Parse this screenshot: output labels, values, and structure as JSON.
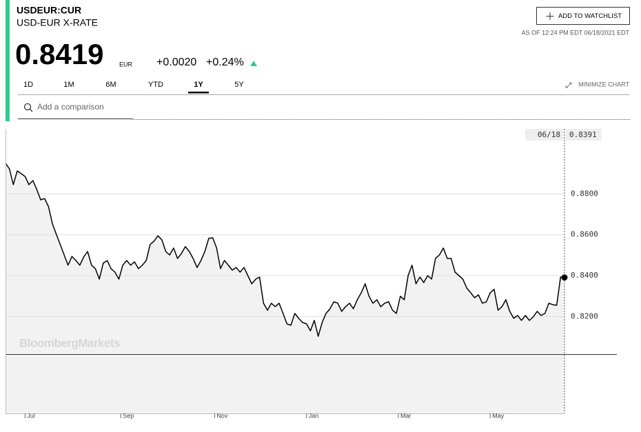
{
  "header": {
    "ticker": "USDEUR:CUR",
    "name": "USD-EUR X-RATE",
    "price": "0.8419",
    "unit": "EUR",
    "change": "+0.0020",
    "change_pct": "+0.24%",
    "watchlist_button": "ADD TO WATCHLIST",
    "timestamp": "AS OF 12:24 PM EDT 06/18/2021 EDT"
  },
  "ranges": {
    "items": [
      "1D",
      "1M",
      "6M",
      "YTD",
      "1Y",
      "5Y"
    ],
    "active": 4,
    "minimize": "MINIMIZE CHART"
  },
  "search": {
    "placeholder": "Add a comparison"
  },
  "watermark": "BloombergMarkets",
  "chart_data": {
    "type": "line",
    "color": "#000000",
    "values": [
      0.8949,
      0.8922,
      0.8845,
      0.8912,
      0.8899,
      0.8885,
      0.8845,
      0.8865,
      0.8821,
      0.8771,
      0.8777,
      0.8737,
      0.8653,
      0.8602,
      0.8552,
      0.8501,
      0.8451,
      0.8494,
      0.8474,
      0.8451,
      0.8491,
      0.8518,
      0.8451,
      0.8434,
      0.8383,
      0.8461,
      0.8474,
      0.8434,
      0.8417,
      0.8383,
      0.8451,
      0.8474,
      0.8451,
      0.8467,
      0.8434,
      0.8451,
      0.8474,
      0.8552,
      0.8569,
      0.8595,
      0.8575,
      0.8518,
      0.8501,
      0.8535,
      0.8484,
      0.8508,
      0.8542,
      0.8518,
      0.8484,
      0.844,
      0.8474,
      0.8518,
      0.8582,
      0.8585,
      0.8535,
      0.8434,
      0.8474,
      0.8451,
      0.8427,
      0.844,
      0.8417,
      0.844,
      0.84,
      0.836,
      0.8383,
      0.8393,
      0.8265,
      0.8231,
      0.8265,
      0.8248,
      0.8265,
      0.8215,
      0.8164,
      0.8157,
      0.8215,
      0.8191,
      0.8171,
      0.8164,
      0.813,
      0.8181,
      0.8103,
      0.8171,
      0.8215,
      0.8238,
      0.8272,
      0.8265,
      0.8225,
      0.8248,
      0.8265,
      0.8238,
      0.8282,
      0.8316,
      0.836,
      0.8299,
      0.8265,
      0.8282,
      0.8248,
      0.8265,
      0.8272,
      0.8231,
      0.8215,
      0.8299,
      0.8282,
      0.84,
      0.8451,
      0.836,
      0.8393,
      0.8366,
      0.84,
      0.8383,
      0.8484,
      0.8501,
      0.8535,
      0.8484,
      0.8484,
      0.8417,
      0.84,
      0.8383,
      0.8339,
      0.8316,
      0.8292,
      0.8306,
      0.8265,
      0.8272,
      0.8316,
      0.8333,
      0.8231,
      0.8248,
      0.8282,
      0.8225,
      0.8191,
      0.8205,
      0.8181,
      0.8205,
      0.8181,
      0.8198,
      0.8225,
      0.8205,
      0.8215,
      0.8265,
      0.8258,
      0.8255,
      0.8393,
      0.8391
    ],
    "xlim": [
      0,
      143
    ],
    "xticks": [
      {
        "value": 5,
        "label": "Jul"
      },
      {
        "value": 29.5,
        "label": "Sep"
      },
      {
        "value": 53.5,
        "label": "Nov"
      },
      {
        "value": 77,
        "label": "Jan"
      },
      {
        "value": 100.5,
        "label": "Mar"
      },
      {
        "value": 124,
        "label": "May"
      }
    ],
    "ylim": [
      0.7726,
      0.9118
    ],
    "yticks": [
      {
        "value": 0.82,
        "label": "0.8200"
      },
      {
        "value": 0.84,
        "label": "0.8400"
      },
      {
        "value": 0.86,
        "label": "0.8600"
      },
      {
        "value": 0.88,
        "label": "0.8800"
      }
    ],
    "grid": true,
    "crosshair_label": "06/18",
    "crosshair_value_label": "0.8391"
  }
}
